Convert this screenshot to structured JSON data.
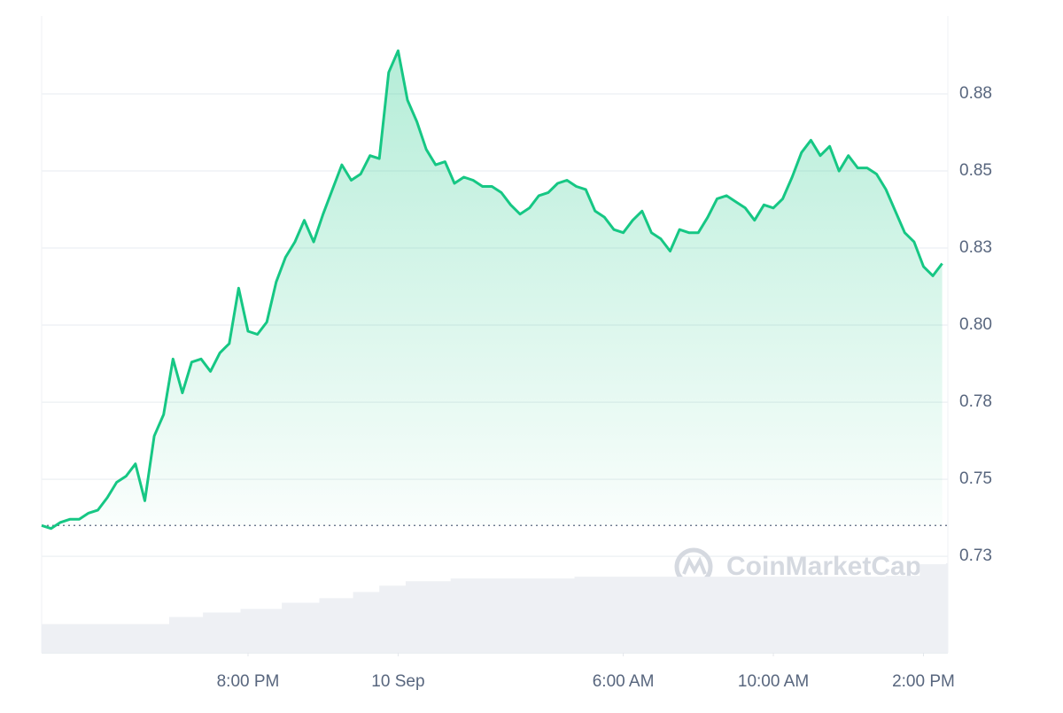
{
  "chart_data": {
    "type": "line",
    "x": [
      -9.5,
      -9.25,
      -9,
      -8.75,
      -8.5,
      -8.25,
      -8,
      -7.75,
      -7.5,
      -7.25,
      -7,
      -6.75,
      -6.5,
      -6.25,
      -6,
      -5.75,
      -5.5,
      -5.25,
      -5,
      -4.75,
      -4.5,
      -4.25,
      -4,
      -3.75,
      -3.5,
      -3.25,
      -3,
      -2.75,
      -2.5,
      -2.25,
      -2,
      -1.75,
      -1.5,
      -1.25,
      -1,
      -0.75,
      -0.5,
      -0.25,
      0,
      0.25,
      0.5,
      0.75,
      1,
      1.25,
      1.5,
      1.75,
      2,
      2.25,
      2.5,
      2.75,
      3,
      3.25,
      3.5,
      3.75,
      4,
      4.25,
      4.5,
      4.75,
      5,
      5.25,
      5.5,
      5.75,
      6,
      6.25,
      6.5,
      6.75,
      7,
      7.25,
      7.5,
      7.75,
      8,
      8.25,
      8.5,
      8.75,
      9,
      9.25,
      9.5,
      9.75,
      10,
      10.25,
      10.5,
      10.75,
      11,
      11.25,
      11.5,
      11.75,
      12,
      12.25,
      12.5,
      12.75,
      13,
      13.25,
      13.5,
      13.75,
      14,
      14.25,
      14.5
    ],
    "series": [
      {
        "color": "#16c784",
        "values": [
          0.735,
          0.734,
          0.736,
          0.737,
          0.737,
          0.739,
          0.74,
          0.744,
          0.749,
          0.751,
          0.755,
          0.743,
          0.764,
          0.771,
          0.789,
          0.778,
          0.788,
          0.789,
          0.785,
          0.791,
          0.794,
          0.812,
          0.798,
          0.797,
          0.801,
          0.814,
          0.822,
          0.827,
          0.834,
          0.827,
          0.836,
          0.844,
          0.852,
          0.847,
          0.849,
          0.855,
          0.854,
          0.882,
          0.889,
          0.873,
          0.866,
          0.857,
          0.852,
          0.853,
          0.846,
          0.848,
          0.847,
          0.845,
          0.845,
          0.843,
          0.839,
          0.836,
          0.838,
          0.842,
          0.843,
          0.846,
          0.847,
          0.845,
          0.844,
          0.837,
          0.835,
          0.831,
          0.83,
          0.834,
          0.837,
          0.83,
          0.828,
          0.824,
          0.831,
          0.83,
          0.83,
          0.835,
          0.841,
          0.842,
          0.84,
          0.838,
          0.834,
          0.839,
          0.838,
          0.841,
          0.848,
          0.856,
          0.86,
          0.855,
          0.858,
          0.85,
          0.855,
          0.851,
          0.851,
          0.849,
          0.844,
          0.837,
          0.83,
          0.827,
          0.819,
          0.816,
          0.82
        ]
      }
    ],
    "baseline": 0.735,
    "volume": {
      "x": [
        -9.5,
        -6.1,
        -5.2,
        -4.2,
        -3.1,
        -2.1,
        -1.2,
        -0.5,
        0.2,
        1.4,
        4.7,
        13,
        13.9,
        14.6
      ],
      "values": [
        32,
        40,
        45,
        49,
        56,
        61,
        68,
        75,
        80,
        83,
        85,
        86,
        99,
        100
      ],
      "ylim": [
        0,
        100
      ],
      "color": "#eef0f4"
    },
    "xlim": [
      -9.5,
      14.65
    ],
    "xticks": [
      {
        "value": -4,
        "label": "8:00 PM"
      },
      {
        "value": 0,
        "label": "10 Sep"
      },
      {
        "value": 6,
        "label": "6:00 AM"
      },
      {
        "value": 10,
        "label": "10:00 AM"
      },
      {
        "value": 14,
        "label": "2:00 PM"
      }
    ],
    "ylim": [
      0.6937,
      0.9003
    ],
    "yticks": [
      {
        "value": 0.725,
        "label": "0.73"
      },
      0.75,
      {
        "value": 0.775,
        "label": "0.78"
      },
      {
        "value": 0.8,
        "label": "0.80"
      },
      {
        "value": 0.825,
        "label": "0.83"
      },
      0.85,
      {
        "value": 0.875,
        "label": "0.88"
      }
    ],
    "grid": true,
    "watermark": "CoinMarketCap"
  }
}
